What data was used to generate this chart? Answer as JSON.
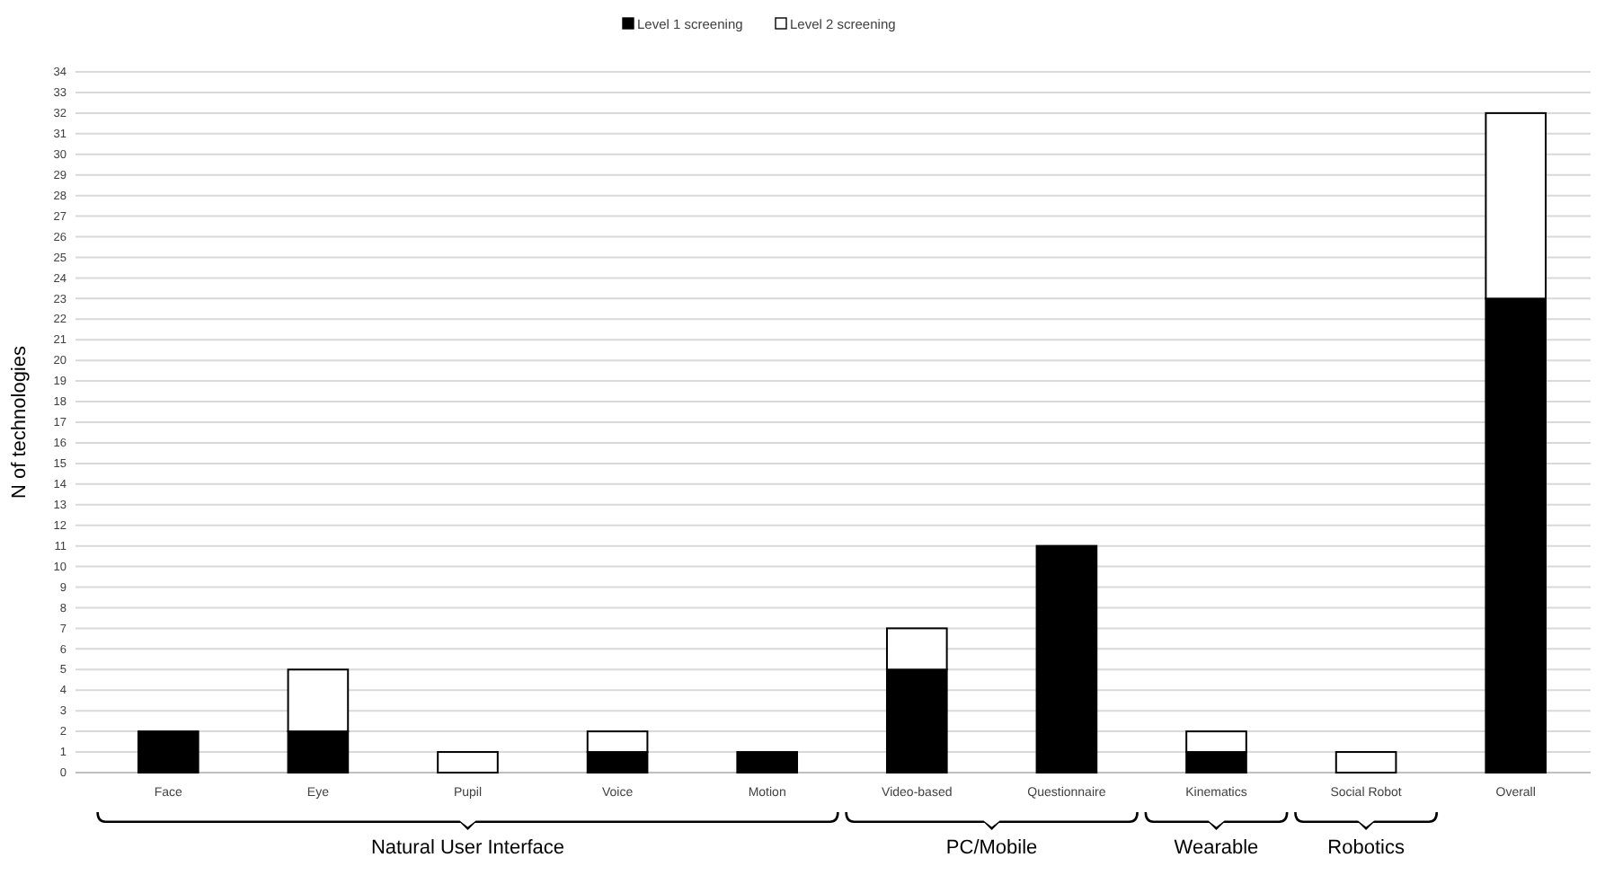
{
  "chart_data": {
    "type": "bar",
    "stacked": true,
    "ylabel": "N of technologies",
    "categories": [
      "Face",
      "Eye",
      "Pupil",
      "Voice",
      "Motion",
      "Video-based",
      "Questionnaire",
      "Kinematics",
      "Social Robot",
      "Overall"
    ],
    "series": [
      {
        "name": "Level 1 screening",
        "color": "#000000",
        "values": [
          2,
          2,
          0,
          1,
          1,
          5,
          11,
          1,
          0,
          23
        ]
      },
      {
        "name": "Level 2 screening",
        "color": "#ffffff",
        "values": [
          0,
          3,
          1,
          1,
          0,
          2,
          0,
          1,
          1,
          9
        ]
      }
    ],
    "ylim": [
      0,
      34
    ],
    "yticks": [
      0,
      1,
      2,
      3,
      4,
      5,
      6,
      7,
      8,
      9,
      10,
      11,
      12,
      13,
      14,
      15,
      16,
      17,
      18,
      19,
      20,
      21,
      22,
      23,
      24,
      25,
      26,
      27,
      28,
      29,
      30,
      31,
      32,
      33,
      34
    ],
    "grid": "y",
    "legend": "top",
    "annotations": [
      "Natural User Interface",
      "PC/Mobile",
      "Wearable",
      "Robotics"
    ]
  }
}
